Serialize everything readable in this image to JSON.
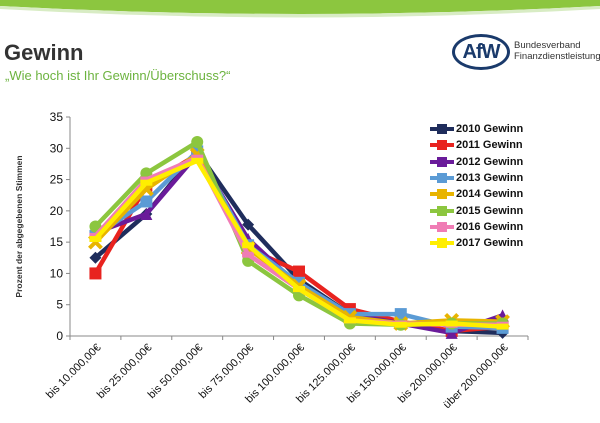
{
  "page": {
    "title": "Gewinn",
    "subtitle": "„Wie hoch ist Ihr Gewinn/Überschuss?“",
    "logo": {
      "mark": "AfW",
      "line1": "Bundesverband",
      "line2": "Finanzdienstleistung"
    },
    "accent_color": "#6cb33f",
    "brand_color": "#1a3a6b"
  },
  "chart_data": {
    "type": "line",
    "title": "",
    "xlabel": "",
    "ylabel": "Prozent der abgegebenen Stimmen",
    "ylim": [
      0,
      35
    ],
    "yticks": [
      0,
      5,
      10,
      15,
      20,
      25,
      30,
      35
    ],
    "grid": false,
    "legend_position": "top-right",
    "categories": [
      "bis 10.000,00€",
      "bis 25.000,00€",
      "bis 50.000,00€",
      "bis 75.000,00€",
      "bis 100.000,00€",
      "bis 125.000,00€",
      "bis 150.000,00€",
      "bis 200.000,00€",
      "über 200.000,00€"
    ],
    "series": [
      {
        "name": "2010 Gewinn",
        "color": "#1f2d5c",
        "marker": "diamond",
        "values": [
          12.5,
          19.5,
          29.5,
          17.8,
          9.0,
          3.5,
          2.0,
          0.8,
          0.5
        ]
      },
      {
        "name": "2011 Gewinn",
        "color": "#e8231f",
        "marker": "square",
        "values": [
          10.0,
          24.0,
          29.0,
          14.0,
          10.3,
          4.3,
          2.3,
          0.8,
          1.5
        ]
      },
      {
        "name": "2012 Gewinn",
        "color": "#6a1b9a",
        "marker": "triangle",
        "values": [
          16.5,
          19.5,
          29.0,
          15.5,
          8.0,
          3.5,
          2.0,
          0.5,
          3.3
        ]
      },
      {
        "name": "2013 Gewinn",
        "color": "#5b9bd5",
        "marker": "square",
        "values": [
          16.0,
          21.5,
          29.5,
          14.5,
          8.5,
          3.5,
          3.5,
          1.5,
          1.3
        ]
      },
      {
        "name": "2014 Gewinn",
        "color": "#e8b400",
        "marker": "x",
        "values": [
          15.0,
          23.5,
          29.0,
          14.0,
          8.0,
          3.0,
          2.0,
          2.5,
          2.3
        ]
      },
      {
        "name": "2015 Gewinn",
        "color": "#8cc63f",
        "marker": "circle",
        "values": [
          17.5,
          26.0,
          31.0,
          12.0,
          6.5,
          2.0,
          1.8,
          2.0,
          2.0
        ]
      },
      {
        "name": "2016 Gewinn",
        "color": "#f07cb5",
        "marker": "bar",
        "values": [
          16.0,
          25.0,
          28.5,
          13.0,
          7.5,
          2.5,
          2.0,
          1.8,
          1.8
        ]
      },
      {
        "name": "2017 Gewinn",
        "color": "#ffee00",
        "marker": "bar",
        "values": [
          15.5,
          24.5,
          28.0,
          14.5,
          7.5,
          2.5,
          1.8,
          2.0,
          1.5
        ]
      }
    ]
  }
}
